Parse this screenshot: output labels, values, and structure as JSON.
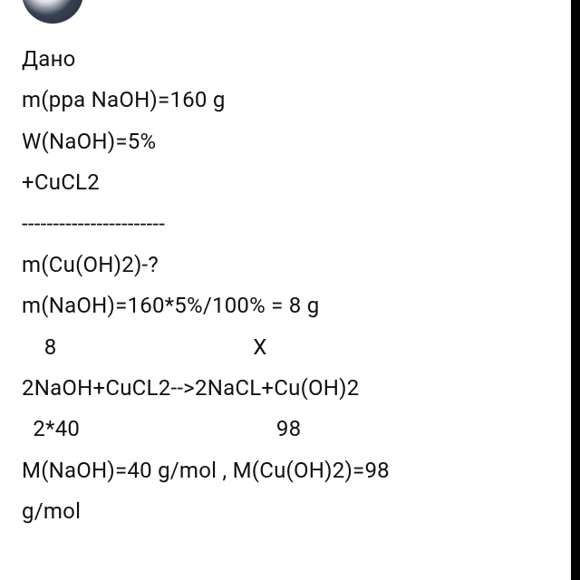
{
  "text": {
    "font_family": "-apple-system, BlinkMacSystemFont, Segoe UI, Roboto",
    "font_size_pt": 18,
    "color": "#111111",
    "background_color": "#ffffff",
    "lines": [
      "Дано",
      "m(ppa NaOH)=160 g",
      "W(NaOH)=5%",
      "+CuCL2",
      "-----------------------",
      "m(Cu(OH)2)-?",
      "m(NaOH)=160*5%/100% = 8 g",
      "    8                                   X",
      "2NaOH+CuCL2-->2NaCL+Cu(OH)2",
      "  2*40                                   98",
      "M(NaOH)=40 g/mol , M(Cu(OH)2)=98",
      "g/mol"
    ]
  },
  "decoration": {
    "right_border_color": "#000000",
    "right_border_width": 10
  }
}
